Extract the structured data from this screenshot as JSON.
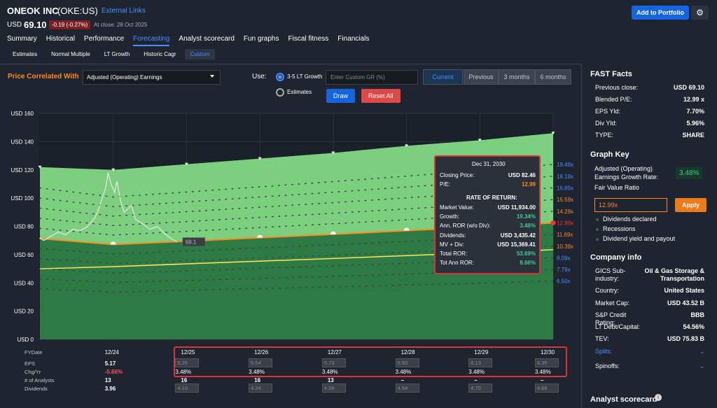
{
  "header": {
    "company": "ONEOK INC",
    "ticker": "(OKE:US)",
    "external_links": "External Links",
    "currency": "USD",
    "price": "69.10",
    "change": "-0.19 (-0.27%)",
    "close_note": "At close: 28 Oct 2025",
    "add_button": "Add to Portfolio"
  },
  "tabs": [
    "Summary",
    "Historical",
    "Performance",
    "Forecasting",
    "Analyst scorecard",
    "Fun graphs",
    "Fiscal fitness",
    "Financials"
  ],
  "active_tab": 3,
  "subtabs": [
    "Estimates",
    "Normal Multiple",
    "LT Growth",
    "Historic Cagr",
    "Custom"
  ],
  "active_subtab": 4,
  "controls": {
    "correlated_label": "Price Correlated With",
    "metric": "Adjusted (Operating) Earnings",
    "use_label": "Use:",
    "growth_option": "3-5 LT Growth",
    "estimates_option": "Estimates",
    "custom_gr_placeholder": "Enter Custom GR (%)",
    "periods": [
      "Current",
      "Previous",
      "3 months",
      "6 months"
    ],
    "active_period": 0,
    "draw": "Draw",
    "reset": "Reset All"
  },
  "chart_data": {
    "type": "line",
    "xlim": [
      2023.95,
      2030.95
    ],
    "ylim": [
      0,
      160
    ],
    "yticks": [
      {
        "value": 0,
        "label": "USD 0"
      },
      {
        "value": 20,
        "label": "USD 20"
      },
      {
        "value": 40,
        "label": "USD 40"
      },
      {
        "value": 60,
        "label": "USD 60"
      },
      {
        "value": 80,
        "label": "USD 80"
      },
      {
        "value": 100,
        "label": "USD 100"
      },
      {
        "value": 120,
        "label": "USD 120"
      },
      {
        "value": 140,
        "label": "USD 140"
      },
      {
        "value": 160,
        "label": "USD 160"
      }
    ],
    "xticks": [
      {
        "value": 2024.95,
        "label": "12/24"
      },
      {
        "value": 2025.95,
        "label": "12/25"
      },
      {
        "value": 2026.95,
        "label": "12/26"
      },
      {
        "value": 2027.95,
        "label": "12/27"
      },
      {
        "value": 2028.95,
        "label": "12/28"
      },
      {
        "value": 2029.95,
        "label": "12/29"
      },
      {
        "value": 2030.95,
        "label": "12/30"
      }
    ],
    "x": [
      2023.95,
      2024.95,
      2025.95,
      2026.95,
      2027.95,
      2028.95,
      2029.95,
      2030.95
    ],
    "area": {
      "upper": [
        122,
        120,
        124,
        128,
        132,
        137,
        141,
        146
      ],
      "upper_color": "#7dcf80",
      "lower_color": "#2e7a45",
      "split_series": 5
    },
    "series": [
      {
        "name": "19.49x",
        "color": "#4d8dff",
        "style": "dotted",
        "values": [
          107.2,
          100.8,
          104.3,
          108.0,
          111.7,
          115.6,
          119.5,
          123.8
        ]
      },
      {
        "name": "18.19x",
        "color": "#4d8dff",
        "style": "dotted",
        "values": [
          100.0,
          94.0,
          97.3,
          100.8,
          104.2,
          107.9,
          111.5,
          115.5
        ]
      },
      {
        "name": "16.89x",
        "color": "#4d8dff",
        "style": "dotted",
        "values": [
          92.9,
          87.3,
          90.4,
          93.6,
          96.8,
          100.2,
          103.5,
          107.3
        ]
      },
      {
        "name": "15.59x",
        "color": "#ff8a1f",
        "style": "dotted",
        "values": [
          85.7,
          80.6,
          83.4,
          86.4,
          89.3,
          92.4,
          95.6,
          99.0
        ]
      },
      {
        "name": "14.29x",
        "color": "#ff8a1f",
        "style": "dotted",
        "values": [
          78.6,
          73.9,
          76.5,
          79.2,
          81.9,
          84.7,
          87.6,
          90.7
        ]
      },
      {
        "name": "12.99x",
        "color": "#ff3030",
        "style": "solid",
        "line_color": "#ff8a1f",
        "values": [
          71.4,
          67.2,
          69.5,
          72.0,
          74.4,
          77.0,
          79.6,
          82.5
        ]
      },
      {
        "name": "11.69x",
        "color": "#ff8a1f",
        "style": "dotted",
        "values": [
          64.3,
          60.4,
          62.5,
          64.8,
          67.0,
          69.3,
          71.7,
          74.2
        ]
      },
      {
        "name": "10.39x",
        "color": "#ff8a1f",
        "style": "dotted",
        "values": [
          57.1,
          53.7,
          55.6,
          57.6,
          59.5,
          61.6,
          63.7,
          66.0
        ]
      },
      {
        "name": "9.09x",
        "color": "#4d8dff",
        "style": "dotted",
        "values": [
          50.0,
          47.0,
          48.6,
          50.4,
          52.1,
          53.9,
          55.7,
          57.7
        ]
      },
      {
        "name": "7.79x",
        "color": "#4d8dff",
        "style": "dotted",
        "values": [
          42.8,
          40.3,
          41.7,
          43.2,
          44.6,
          46.2,
          47.8,
          49.5
        ]
      },
      {
        "name": "6.50x",
        "color": "#4d8dff",
        "style": "dotted",
        "values": [
          35.8,
          33.6,
          34.8,
          36.0,
          37.2,
          38.5,
          39.8,
          41.3
        ]
      }
    ],
    "baseline": {
      "color": "#ffe45c",
      "values": [
        50,
        51.5,
        53.5,
        55.4,
        57.3,
        59.3,
        61.3,
        63.5
      ]
    },
    "price": {
      "color": "#e8e8e8",
      "x": [
        2023.95,
        2024.0,
        2024.1,
        2024.2,
        2024.3,
        2024.4,
        2024.5,
        2024.6,
        2024.7,
        2024.75,
        2024.8,
        2024.85,
        2024.88,
        2024.92,
        2024.97,
        2025.0,
        2025.05,
        2025.1,
        2025.2,
        2025.25,
        2025.35,
        2025.45,
        2025.55,
        2025.65,
        2025.75,
        2025.82
      ],
      "values": [
        72,
        70,
        73,
        76,
        74,
        78,
        77,
        80,
        86,
        92,
        100,
        108,
        118,
        110,
        104,
        112,
        98,
        90,
        95,
        85,
        82,
        78,
        80,
        75,
        71,
        69.1
      ]
    }
  },
  "tooltip": {
    "date": "Dec 31, 2030",
    "rows": [
      {
        "label": "Closing Price:",
        "value": "USD 82.46",
        "color": "#ffffff"
      },
      {
        "label": "P/E:",
        "value": "12.99",
        "color": "#ff8a1f"
      }
    ],
    "section": "RATE OF RETURN:",
    "ror_rows": [
      {
        "label": "Market Value:",
        "value": "USD 11,934.00",
        "color": "#ffffff"
      },
      {
        "label": "Growth:",
        "value": "19.34%",
        "color": "#3ecf8e"
      },
      {
        "label": "Ann. ROR (w/o Div):",
        "value": "3.48%",
        "color": "#3ecf8e"
      },
      {
        "label": "Dividends:",
        "value": "USD 3,435.42",
        "color": "#ffffff"
      },
      {
        "label": "MV + Div:",
        "value": "USD 15,369.41",
        "color": "#ffffff"
      },
      {
        "label": "Total ROR:",
        "value": "53.69%",
        "color": "#3ecf8e"
      },
      {
        "label": "Tot Ann ROR:",
        "value": "8.66%",
        "color": "#3ecf8e"
      }
    ]
  },
  "table": {
    "row_labels": [
      "FYDate",
      "EPS",
      "Chg/Yr",
      "# of Analysts",
      "Dividends"
    ],
    "columns": [
      {
        "eps": "5.17",
        "chg": "-5.66%",
        "analysts": "13",
        "dividends": "3.96"
      },
      {
        "eps": "5.35",
        "chg": "3.48%",
        "analysts": "16",
        "dividends": "4.10"
      },
      {
        "eps": "5.54",
        "chg": "3.48%",
        "analysts": "16",
        "dividends": "4.24"
      },
      {
        "eps": "5.73",
        "chg": "3.48%",
        "analysts": "13",
        "dividends": "4.39"
      },
      {
        "eps": "5.93",
        "chg": "3.48%",
        "analysts": "–",
        "dividends": "4.54"
      },
      {
        "eps": "6.13",
        "chg": "3.48%",
        "analysts": "–",
        "dividends": "4.70"
      },
      {
        "eps": "6.35",
        "chg": "3.48%",
        "analysts": "–",
        "dividends": "4.86"
      }
    ]
  },
  "fast_facts": {
    "title": "FAST Facts",
    "rows": [
      [
        "Previous close:",
        "USD 69.10"
      ],
      [
        "Blended P/E:",
        "12.99 x"
      ],
      [
        "EPS Yld:",
        "7.70%"
      ],
      [
        "Div Yld:",
        "5.96%"
      ],
      [
        "TYPE:",
        "SHARE"
      ]
    ]
  },
  "graph_key": {
    "title": "Graph Key",
    "growth_label": "Adjusted (Operating) Earnings Growth Rate:",
    "growth_value": "3.48%",
    "ratio_label": "Fair Value Ratio",
    "ratio_input": "12.99x",
    "apply": "Apply",
    "options": [
      "Dividends declared",
      "Recessions",
      "Dividend yield and payout"
    ]
  },
  "company_info": {
    "title": "Company info",
    "rows": [
      [
        "GICS Sub-industry:",
        "Oil & Gas Storage & Transportation"
      ],
      [
        "Country:",
        "United States"
      ],
      [
        "Market Cap:",
        "USD 43.52 B"
      ],
      [
        "S&P Credit Rating:",
        "BBB"
      ],
      [
        "LT Debt/Capital:",
        "54.56%"
      ],
      [
        "TEV:",
        "USD 75.83 B"
      ]
    ],
    "splits": "Splits:",
    "spinoffs": "Spinoffs:"
  },
  "analyst_scorecard": "Analyst scorecard"
}
